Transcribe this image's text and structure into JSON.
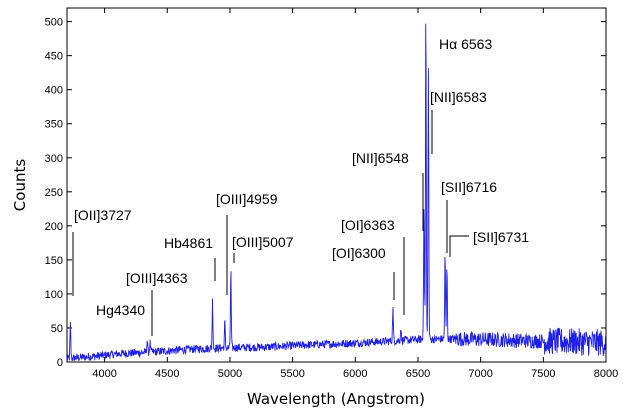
{
  "chart_data": {
    "type": "line",
    "title": "",
    "xlabel": "Wavelength (Angstrom)",
    "ylabel": "Counts",
    "xlim": [
      3700,
      8000
    ],
    "ylim": [
      0,
      520
    ],
    "grid": false,
    "line_color": "#1f1fe6",
    "x_ticks": [
      4000,
      4500,
      5000,
      5500,
      6000,
      6500,
      7000,
      7500,
      8000
    ],
    "y_ticks": [
      0,
      50,
      100,
      150,
      200,
      250,
      300,
      350,
      400,
      450,
      500
    ],
    "continuum": [
      {
        "x": 3700,
        "y": 5
      },
      {
        "x": 3900,
        "y": 8
      },
      {
        "x": 4100,
        "y": 12
      },
      {
        "x": 4400,
        "y": 15
      },
      {
        "x": 4700,
        "y": 19
      },
      {
        "x": 5000,
        "y": 21
      },
      {
        "x": 5300,
        "y": 22
      },
      {
        "x": 5600,
        "y": 25
      },
      {
        "x": 5900,
        "y": 27
      },
      {
        "x": 6200,
        "y": 30
      },
      {
        "x": 6500,
        "y": 33
      },
      {
        "x": 6800,
        "y": 34
      },
      {
        "x": 7100,
        "y": 33
      },
      {
        "x": 7400,
        "y": 31
      },
      {
        "x": 7700,
        "y": 30
      },
      {
        "x": 8000,
        "y": 28
      }
    ],
    "lines": [
      {
        "x": 3727,
        "peak": 55
      },
      {
        "x": 4340,
        "peak": 33
      },
      {
        "x": 4363,
        "peak": 28
      },
      {
        "x": 4861,
        "peak": 90
      },
      {
        "x": 4959,
        "peak": 60
      },
      {
        "x": 5007,
        "peak": 135
      },
      {
        "x": 6300,
        "peak": 80
      },
      {
        "x": 6363,
        "peak": 50
      },
      {
        "x": 6548,
        "peak": 240
      },
      {
        "x": 6563,
        "peak": 520
      },
      {
        "x": 6583,
        "peak": 430
      },
      {
        "x": 6716,
        "peak": 160
      },
      {
        "x": 6731,
        "peak": 140
      }
    ],
    "annotations": [
      {
        "label": "[OII]3727",
        "x": 3727
      },
      {
        "label": "Hg4340",
        "x": 4340
      },
      {
        "label": "[OIII]4363",
        "x": 4363
      },
      {
        "label": "Hb4861",
        "x": 4861
      },
      {
        "label": "[OIII]4959",
        "x": 4959
      },
      {
        "label": "[OIII]5007",
        "x": 5007
      },
      {
        "label": "[OI]6300",
        "x": 6300
      },
      {
        "label": "[OI]6363",
        "x": 6363
      },
      {
        "label": "[NII]6548",
        "x": 6548
      },
      {
        "label": "Hα 6563",
        "x": 6563
      },
      {
        "label": "[NII]6583",
        "x": 6583
      },
      {
        "label": "[SII]6716",
        "x": 6716
      },
      {
        "label": "[SII]6731",
        "x": 6731
      }
    ]
  }
}
